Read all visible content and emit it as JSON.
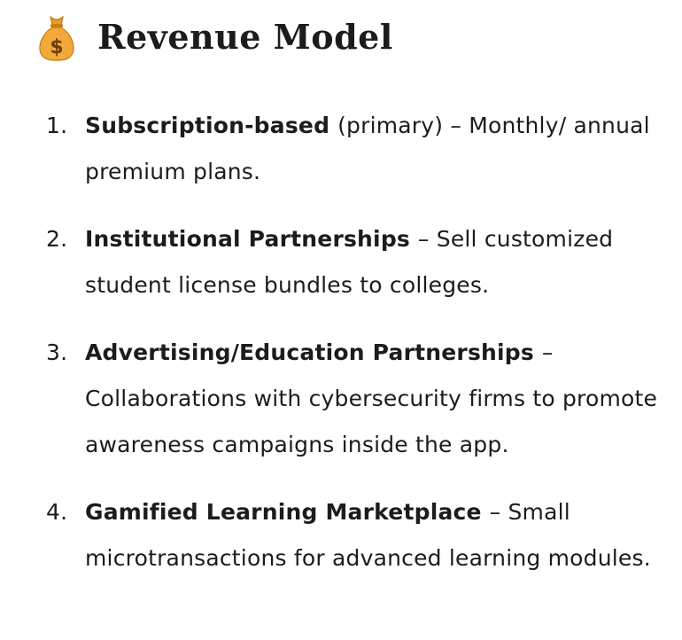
{
  "header": {
    "icon": "money-bag-icon",
    "title": "Revenue Model"
  },
  "items": [
    {
      "number": "1.",
      "term": "Subscription-based",
      "description": "(primary) – Monthly/ annual premium plans."
    },
    {
      "number": "2.",
      "term": "Institutional Partnerships",
      "description": "– Sell customized student license bundles to colleges."
    },
    {
      "number": "3.",
      "term": "Advertising/Education Partnerships",
      "description": "– Collaborations with cybersecurity firms to promote awareness campaigns inside the app."
    },
    {
      "number": "4.",
      "term": "Gamified Learning Marketplace",
      "description": "– Small microtransactions for advanced learning modules."
    }
  ],
  "colors": {
    "text": "#1c1c1c",
    "bag": "#f2a93b",
    "bag_dark": "#c97d14",
    "background": "#ffffff"
  }
}
